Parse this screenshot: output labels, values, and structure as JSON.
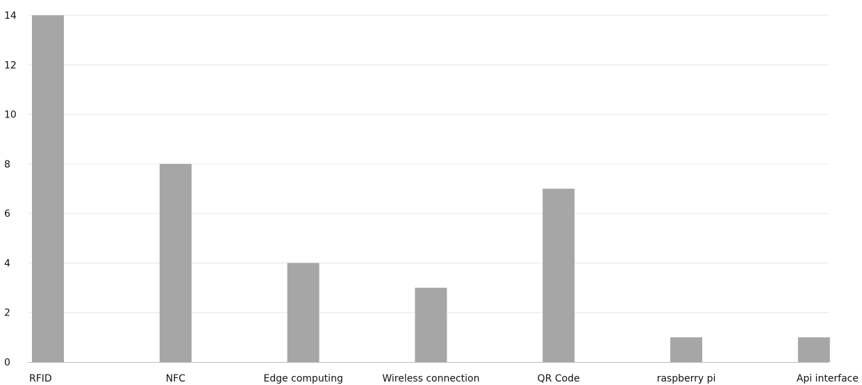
{
  "chart_data": {
    "type": "bar",
    "categories": [
      "RFID",
      "NFC",
      "Edge computing",
      "Wireless connection",
      "QR Code",
      "raspberry pi",
      "Api interface"
    ],
    "values": [
      14,
      8,
      4,
      3,
      7,
      1,
      1
    ],
    "ylim": [
      0,
      14
    ],
    "yticks": [
      0,
      2,
      4,
      6,
      8,
      10,
      12,
      14
    ],
    "grid": true,
    "legend": "none",
    "bar_color": "#a6a6a6",
    "gridline_color": "#e6e6e6",
    "axis_color": "#bdbdbd",
    "text_color": "#111111"
  }
}
